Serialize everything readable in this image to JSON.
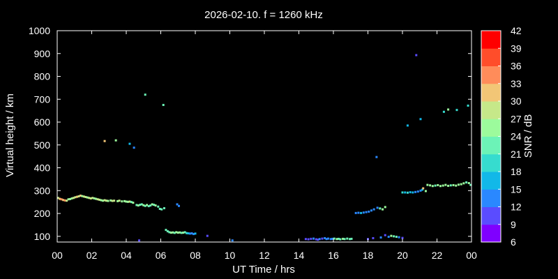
{
  "chart_data": {
    "type": "scatter",
    "title": "2026-02-10. f = 1260 kHz",
    "xlabel": "UT Time / hrs",
    "ylabel": "Virtual height / km",
    "colorbar_label": "SNR / dB",
    "xlim": [
      0,
      24
    ],
    "ylim": [
      75,
      1000
    ],
    "x_ticks": [
      "00",
      "02",
      "04",
      "06",
      "08",
      "10",
      "12",
      "14",
      "16",
      "18",
      "20",
      "22",
      "00"
    ],
    "y_ticks": [
      "100",
      "200",
      "300",
      "400",
      "500",
      "600",
      "700",
      "800",
      "900",
      "1000"
    ],
    "colorbar": {
      "min": 6,
      "max": 42,
      "ticks": [
        "6",
        "9",
        "12",
        "15",
        "18",
        "21",
        "24",
        "27",
        "30",
        "33",
        "36",
        "39",
        "42"
      ],
      "colors": [
        "#7f00ff",
        "#5a4cff",
        "#2a88ff",
        "#12b8e8",
        "#36dccf",
        "#6cf3b7",
        "#9cfb9c",
        "#c6e889",
        "#f2c676",
        "#ff8c5a",
        "#ff4d2a",
        "#ff0000"
      ]
    },
    "grid": false,
    "points": [
      [
        0.05,
        268,
        27
      ],
      [
        0.15,
        264,
        32
      ],
      [
        0.25,
        262,
        35
      ],
      [
        0.35,
        259,
        30
      ],
      [
        0.45,
        257,
        33
      ],
      [
        0.55,
        256,
        28
      ],
      [
        0.65,
        262,
        25
      ],
      [
        0.75,
        263,
        26
      ],
      [
        0.85,
        266,
        24
      ],
      [
        0.95,
        268,
        27
      ],
      [
        1.05,
        271,
        28
      ],
      [
        1.15,
        273,
        30
      ],
      [
        1.25,
        275,
        29
      ],
      [
        1.35,
        278,
        30
      ],
      [
        1.45,
        276,
        26
      ],
      [
        1.55,
        274,
        27
      ],
      [
        1.65,
        272,
        28
      ],
      [
        1.75,
        270,
        26
      ],
      [
        1.85,
        268,
        27
      ],
      [
        1.95,
        266,
        28
      ],
      [
        2.05,
        268,
        29
      ],
      [
        2.15,
        266,
        26
      ],
      [
        2.25,
        264,
        25
      ],
      [
        2.35,
        262,
        27
      ],
      [
        2.45,
        260,
        28
      ],
      [
        2.55,
        258,
        26
      ],
      [
        2.65,
        256,
        24
      ],
      [
        2.75,
        258,
        27
      ],
      [
        2.85,
        256,
        28
      ],
      [
        2.95,
        255,
        26
      ],
      [
        3.1,
        257,
        25
      ],
      [
        3.2,
        255,
        27
      ],
      [
        3.3,
        256,
        28
      ],
      [
        3.5,
        254,
        26
      ],
      [
        3.6,
        256,
        28
      ],
      [
        3.75,
        253,
        25
      ],
      [
        3.9,
        254,
        26
      ],
      [
        4.0,
        252,
        25
      ],
      [
        4.1,
        251,
        24
      ],
      [
        4.2,
        252,
        27
      ],
      [
        4.3,
        250,
        23
      ],
      [
        4.4,
        247,
        25
      ],
      [
        4.6,
        237,
        23
      ],
      [
        4.7,
        235,
        24
      ],
      [
        4.8,
        238,
        22
      ],
      [
        4.9,
        240,
        23
      ],
      [
        5.0,
        236,
        25
      ],
      [
        5.1,
        233,
        22
      ],
      [
        5.2,
        237,
        24
      ],
      [
        5.3,
        232,
        23
      ],
      [
        5.4,
        235,
        22
      ],
      [
        5.5,
        240,
        24
      ],
      [
        5.6,
        238,
        23
      ],
      [
        5.7,
        235,
        25
      ],
      [
        5.85,
        230,
        22
      ],
      [
        5.95,
        220,
        22
      ],
      [
        6.05,
        218,
        23
      ],
      [
        6.2,
        223,
        22
      ],
      [
        6.3,
        128,
        22
      ],
      [
        6.4,
        122,
        21
      ],
      [
        6.5,
        118,
        23
      ],
      [
        6.6,
        116,
        25
      ],
      [
        6.7,
        117,
        24
      ],
      [
        6.8,
        115,
        22
      ],
      [
        6.9,
        118,
        26
      ],
      [
        7.0,
        116,
        24
      ],
      [
        7.1,
        117,
        25
      ],
      [
        7.2,
        115,
        23
      ],
      [
        7.3,
        116,
        24
      ],
      [
        7.4,
        118,
        22
      ],
      [
        7.5,
        114,
        20
      ],
      [
        7.6,
        113,
        17
      ],
      [
        7.7,
        112,
        13
      ],
      [
        7.8,
        113,
        12
      ],
      [
        7.9,
        110,
        14
      ],
      [
        8.0,
        112,
        15
      ],
      [
        8.7,
        102,
        11
      ],
      [
        4.75,
        82,
        11
      ],
      [
        10.15,
        82,
        12
      ],
      [
        6.95,
        240,
        13
      ],
      [
        7.05,
        233,
        12
      ],
      [
        2.75,
        517,
        30
      ],
      [
        3.4,
        520,
        26
      ],
      [
        4.2,
        505,
        17
      ],
      [
        4.45,
        488,
        14
      ],
      [
        5.1,
        720,
        23
      ],
      [
        6.15,
        675,
        22
      ],
      [
        14.4,
        88,
        11
      ],
      [
        14.55,
        87,
        10
      ],
      [
        14.7,
        89,
        11
      ],
      [
        14.85,
        90,
        12
      ],
      [
        15.0,
        87,
        11
      ],
      [
        15.1,
        85,
        10
      ],
      [
        15.2,
        88,
        12
      ],
      [
        15.35,
        90,
        11
      ],
      [
        15.5,
        92,
        12
      ],
      [
        15.6,
        88,
        13
      ],
      [
        15.7,
        90,
        12
      ],
      [
        15.85,
        88,
        14
      ],
      [
        15.95,
        89,
        13
      ],
      [
        16.05,
        90,
        22
      ],
      [
        16.2,
        88,
        24
      ],
      [
        16.3,
        89,
        23
      ],
      [
        16.4,
        87,
        22
      ],
      [
        16.55,
        89,
        24
      ],
      [
        16.65,
        88,
        23
      ],
      [
        16.8,
        90,
        22
      ],
      [
        16.95,
        88,
        21
      ],
      [
        17.05,
        89,
        23
      ],
      [
        18.0,
        88,
        11
      ],
      [
        18.3,
        92,
        10
      ],
      [
        18.75,
        95,
        12
      ],
      [
        19.0,
        105,
        11
      ],
      [
        19.2,
        98,
        13
      ],
      [
        19.35,
        102,
        24
      ],
      [
        19.5,
        100,
        22
      ],
      [
        19.65,
        98,
        23
      ],
      [
        19.8,
        96,
        12
      ],
      [
        20.0,
        93,
        11
      ],
      [
        17.3,
        202,
        14
      ],
      [
        17.45,
        203,
        13
      ],
      [
        17.6,
        202,
        15
      ],
      [
        17.75,
        204,
        13
      ],
      [
        17.9,
        206,
        14
      ],
      [
        18.05,
        208,
        13
      ],
      [
        18.2,
        213,
        12
      ],
      [
        18.35,
        218,
        12
      ],
      [
        18.55,
        225,
        13
      ],
      [
        18.7,
        222,
        22
      ],
      [
        18.85,
        218,
        24
      ],
      [
        19.0,
        228,
        25
      ],
      [
        20.0,
        292,
        18
      ],
      [
        20.15,
        292,
        17
      ],
      [
        20.3,
        291,
        18
      ],
      [
        20.45,
        293,
        16
      ],
      [
        20.6,
        292,
        15
      ],
      [
        20.75,
        294,
        14
      ],
      [
        20.9,
        296,
        14
      ],
      [
        21.05,
        300,
        13
      ],
      [
        21.15,
        304,
        15
      ],
      [
        21.2,
        310,
        30
      ],
      [
        21.35,
        298,
        26
      ],
      [
        21.45,
        325,
        24
      ],
      [
        21.6,
        323,
        25
      ],
      [
        21.75,
        320,
        24
      ],
      [
        21.9,
        322,
        23
      ],
      [
        22.05,
        324,
        25
      ],
      [
        22.2,
        320,
        26
      ],
      [
        22.35,
        322,
        24
      ],
      [
        22.5,
        325,
        25
      ],
      [
        22.65,
        321,
        24
      ],
      [
        22.8,
        323,
        23
      ],
      [
        22.95,
        324,
        25
      ],
      [
        23.1,
        322,
        24
      ],
      [
        23.25,
        326,
        25
      ],
      [
        23.4,
        328,
        24
      ],
      [
        23.55,
        332,
        26
      ],
      [
        23.7,
        336,
        23
      ],
      [
        23.85,
        333,
        24
      ],
      [
        23.95,
        325,
        22
      ],
      [
        18.5,
        447,
        13
      ],
      [
        20.8,
        893,
        11
      ],
      [
        20.3,
        585,
        17
      ],
      [
        21.05,
        613,
        15
      ],
      [
        22.4,
        645,
        20
      ],
      [
        22.65,
        655,
        25
      ],
      [
        23.15,
        653,
        20
      ],
      [
        23.8,
        672,
        18
      ]
    ]
  }
}
